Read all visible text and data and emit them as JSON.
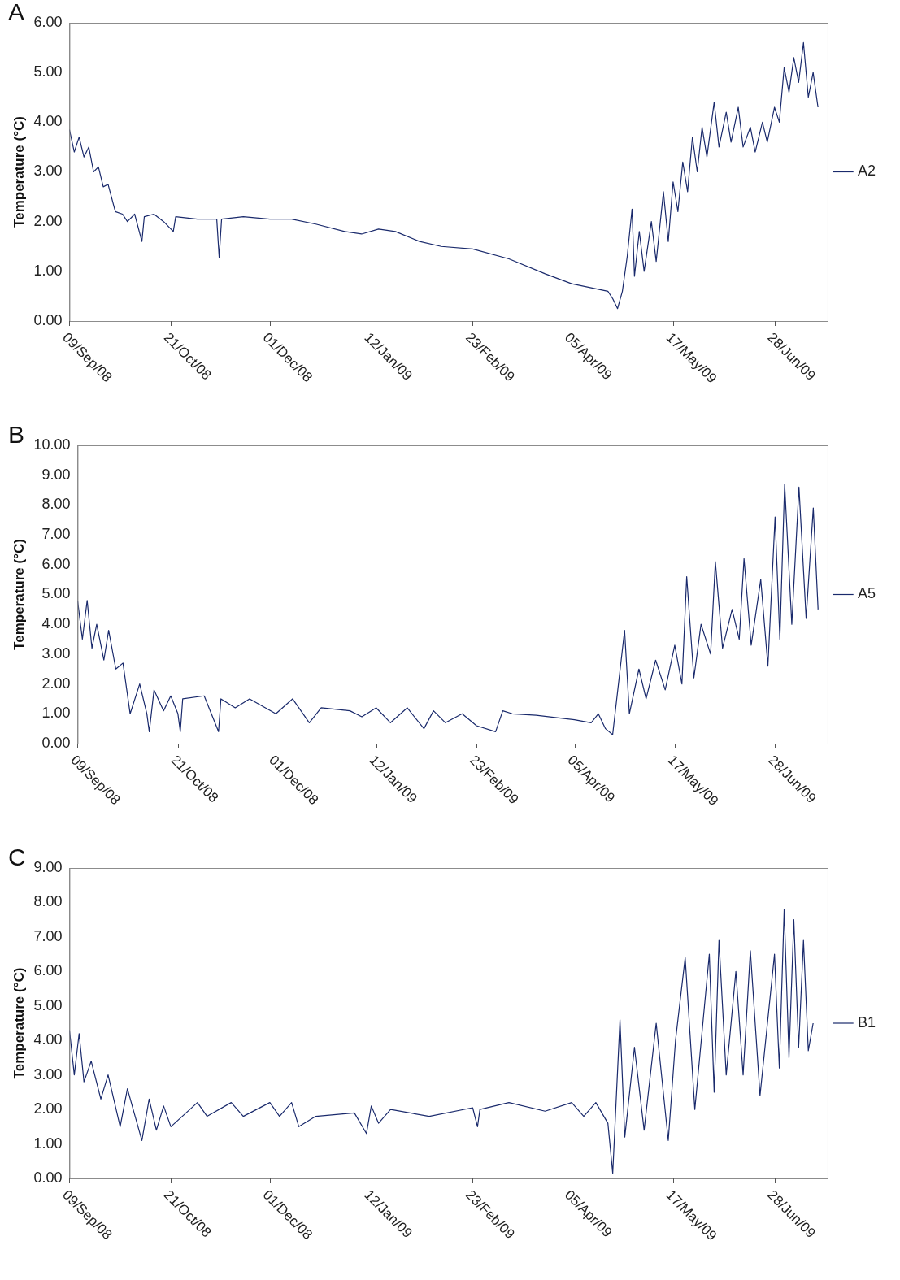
{
  "chart_data": [
    {
      "type": "line",
      "title": "A",
      "ylabel": "Temperature (°C)",
      "legend": "right",
      "grid": false,
      "marker": "none",
      "line_style": "solid",
      "xlim": [
        "2008-09-09",
        "2009-07-20"
      ],
      "xticks": [
        {
          "value": "2008-09-09",
          "label": "09/Sep/08"
        },
        {
          "value": "2008-10-21",
          "label": "21/Oct/08"
        },
        {
          "value": "2008-12-01",
          "label": "01/Dec/08"
        },
        {
          "value": "2009-01-12",
          "label": "12/Jan/09"
        },
        {
          "value": "2009-02-23",
          "label": "23/Feb/09"
        },
        {
          "value": "2009-04-05",
          "label": "05/Apr/09"
        },
        {
          "value": "2009-05-17",
          "label": "17/May/09"
        },
        {
          "value": "2009-06-28",
          "label": "28/Jun/09"
        }
      ],
      "ylim": [
        0,
        6
      ],
      "yticks": [
        {
          "value": 0,
          "label": "0.00"
        },
        {
          "value": 1,
          "label": "1.00"
        },
        {
          "value": 2,
          "label": "2.00"
        },
        {
          "value": 3,
          "label": "3.00"
        },
        {
          "value": 4,
          "label": "4.00"
        },
        {
          "value": 5,
          "label": "5.00"
        },
        {
          "value": 6,
          "label": "6.00"
        }
      ],
      "series": [
        {
          "name": "A2",
          "color": "#1a2a6c",
          "x": [
            "2008-09-09",
            "2008-09-11",
            "2008-09-13",
            "2008-09-15",
            "2008-09-17",
            "2008-09-19",
            "2008-09-21",
            "2008-09-23",
            "2008-09-25",
            "2008-09-28",
            "2008-10-01",
            "2008-10-03",
            "2008-10-06",
            "2008-10-09",
            "2008-10-10",
            "2008-10-14",
            "2008-10-18",
            "2008-10-22",
            "2008-10-23",
            "2008-11-01",
            "2008-11-09",
            "2008-11-10",
            "2008-11-11",
            "2008-11-20",
            "2008-12-01",
            "2008-12-10",
            "2008-12-20",
            "2009-01-01",
            "2009-01-08",
            "2009-01-15",
            "2009-01-22",
            "2009-02-01",
            "2009-02-10",
            "2009-02-23",
            "2009-03-10",
            "2009-03-25",
            "2009-04-05",
            "2009-04-20",
            "2009-04-22",
            "2009-04-24",
            "2009-04-26",
            "2009-04-28",
            "2009-04-30",
            "2009-05-01",
            "2009-05-03",
            "2009-05-05",
            "2009-05-08",
            "2009-05-10",
            "2009-05-13",
            "2009-05-15",
            "2009-05-17",
            "2009-05-19",
            "2009-05-21",
            "2009-05-23",
            "2009-05-25",
            "2009-05-27",
            "2009-05-29",
            "2009-05-31",
            "2009-06-03",
            "2009-06-05",
            "2009-06-08",
            "2009-06-10",
            "2009-06-13",
            "2009-06-15",
            "2009-06-18",
            "2009-06-20",
            "2009-06-23",
            "2009-06-25",
            "2009-06-28",
            "2009-06-30",
            "2009-07-02",
            "2009-07-04",
            "2009-07-06",
            "2009-07-08",
            "2009-07-10",
            "2009-07-12",
            "2009-07-14",
            "2009-07-16"
          ],
          "values": [
            3.85,
            3.4,
            3.7,
            3.3,
            3.5,
            3.0,
            3.1,
            2.7,
            2.75,
            2.2,
            2.15,
            2.0,
            2.15,
            1.6,
            2.1,
            2.15,
            2.0,
            1.8,
            2.1,
            2.05,
            2.05,
            1.28,
            2.05,
            2.1,
            2.05,
            2.05,
            1.95,
            1.8,
            1.75,
            1.85,
            1.8,
            1.6,
            1.5,
            1.45,
            1.25,
            0.95,
            0.75,
            0.6,
            0.45,
            0.25,
            0.6,
            1.3,
            2.25,
            0.9,
            1.8,
            1.0,
            2.0,
            1.2,
            2.6,
            1.6,
            2.8,
            2.2,
            3.2,
            2.6,
            3.7,
            3.0,
            3.9,
            3.3,
            4.4,
            3.5,
            4.2,
            3.6,
            4.3,
            3.5,
            3.9,
            3.4,
            4.0,
            3.6,
            4.3,
            4.0,
            5.1,
            4.6,
            5.3,
            4.8,
            5.6,
            4.5,
            5.0,
            4.3
          ]
        }
      ]
    },
    {
      "type": "line",
      "title": "B",
      "ylabel": "Temperature (°C)",
      "legend": "right",
      "grid": false,
      "marker": "none",
      "line_style": "solid",
      "xlim": [
        "2008-09-09",
        "2009-07-20"
      ],
      "xticks": [
        {
          "value": "2008-09-09",
          "label": "09/Sep/08"
        },
        {
          "value": "2008-10-21",
          "label": "21/Oct/08"
        },
        {
          "value": "2008-12-01",
          "label": "01/Dec/08"
        },
        {
          "value": "2009-01-12",
          "label": "12/Jan/09"
        },
        {
          "value": "2009-02-23",
          "label": "23/Feb/09"
        },
        {
          "value": "2009-04-05",
          "label": "05/Apr/09"
        },
        {
          "value": "2009-05-17",
          "label": "17/May/09"
        },
        {
          "value": "2009-06-28",
          "label": "28/Jun/09"
        }
      ],
      "ylim": [
        0,
        10
      ],
      "yticks": [
        {
          "value": 0,
          "label": "0.00"
        },
        {
          "value": 1,
          "label": "1.00"
        },
        {
          "value": 2,
          "label": "2.00"
        },
        {
          "value": 3,
          "label": "3.00"
        },
        {
          "value": 4,
          "label": "4.00"
        },
        {
          "value": 5,
          "label": "5.00"
        },
        {
          "value": 6,
          "label": "6.00"
        },
        {
          "value": 7,
          "label": "7.00"
        },
        {
          "value": 8,
          "label": "8.00"
        },
        {
          "value": 9,
          "label": "9.00"
        },
        {
          "value": 10,
          "label": "10.00"
        }
      ],
      "series": [
        {
          "name": "A5",
          "color": "#1a2a6c",
          "x": [
            "2008-09-09",
            "2008-09-11",
            "2008-09-13",
            "2008-09-15",
            "2008-09-17",
            "2008-09-20",
            "2008-09-22",
            "2008-09-25",
            "2008-09-28",
            "2008-10-01",
            "2008-10-05",
            "2008-10-08",
            "2008-10-09",
            "2008-10-11",
            "2008-10-15",
            "2008-10-18",
            "2008-10-21",
            "2008-10-22",
            "2008-10-23",
            "2008-11-01",
            "2008-11-07",
            "2008-11-08",
            "2008-11-14",
            "2008-11-20",
            "2008-12-01",
            "2008-12-08",
            "2008-12-15",
            "2008-12-20",
            "2009-01-01",
            "2009-01-06",
            "2009-01-12",
            "2009-01-18",
            "2009-01-25",
            "2009-02-01",
            "2009-02-05",
            "2009-02-10",
            "2009-02-17",
            "2009-02-23",
            "2009-03-03",
            "2009-03-06",
            "2009-03-10",
            "2009-03-20",
            "2009-04-05",
            "2009-04-12",
            "2009-04-15",
            "2009-04-18",
            "2009-04-21",
            "2009-04-26",
            "2009-04-28",
            "2009-05-02",
            "2009-05-05",
            "2009-05-09",
            "2009-05-13",
            "2009-05-17",
            "2009-05-20",
            "2009-05-22",
            "2009-05-25",
            "2009-05-28",
            "2009-06-01",
            "2009-06-03",
            "2009-06-06",
            "2009-06-10",
            "2009-06-13",
            "2009-06-15",
            "2009-06-18",
            "2009-06-22",
            "2009-06-25",
            "2009-06-28",
            "2009-06-30",
            "2009-07-02",
            "2009-07-05",
            "2009-07-08",
            "2009-07-11",
            "2009-07-14",
            "2009-07-16"
          ],
          "values": [
            4.8,
            3.5,
            4.8,
            3.2,
            4.0,
            2.8,
            3.8,
            2.5,
            2.7,
            1.0,
            2.0,
            1.0,
            0.4,
            1.8,
            1.1,
            1.6,
            1.0,
            0.4,
            1.5,
            1.6,
            0.4,
            1.5,
            1.2,
            1.5,
            1.0,
            1.5,
            0.7,
            1.2,
            1.1,
            0.9,
            1.2,
            0.7,
            1.2,
            0.5,
            1.1,
            0.7,
            1.0,
            0.6,
            0.4,
            1.1,
            1.0,
            0.95,
            0.8,
            0.7,
            1.0,
            0.5,
            0.3,
            3.8,
            1.0,
            2.5,
            1.5,
            2.8,
            1.8,
            3.3,
            2.0,
            5.6,
            2.2,
            4.0,
            3.0,
            6.1,
            3.2,
            4.5,
            3.5,
            6.2,
            3.3,
            5.5,
            2.6,
            7.6,
            3.5,
            8.7,
            4.0,
            8.6,
            4.2,
            7.9,
            4.5
          ]
        }
      ]
    },
    {
      "type": "line",
      "title": "C",
      "ylabel": "Temperature (°C)",
      "legend": "right",
      "grid": false,
      "marker": "none",
      "line_style": "solid",
      "xlim": [
        "2008-09-09",
        "2009-07-20"
      ],
      "xticks": [
        {
          "value": "2008-09-09",
          "label": "09/Sep/08"
        },
        {
          "value": "2008-10-21",
          "label": "21/Oct/08"
        },
        {
          "value": "2008-12-01",
          "label": "01/Dec/08"
        },
        {
          "value": "2009-01-12",
          "label": "12/Jan/09"
        },
        {
          "value": "2009-02-23",
          "label": "23/Feb/09"
        },
        {
          "value": "2009-04-05",
          "label": "05/Apr/09"
        },
        {
          "value": "2009-05-17",
          "label": "17/May/09"
        },
        {
          "value": "2009-06-28",
          "label": "28/Jun/09"
        }
      ],
      "ylim": [
        0,
        9
      ],
      "yticks": [
        {
          "value": 0,
          "label": "0.00"
        },
        {
          "value": 1,
          "label": "1.00"
        },
        {
          "value": 2,
          "label": "2.00"
        },
        {
          "value": 3,
          "label": "3.00"
        },
        {
          "value": 4,
          "label": "4.00"
        },
        {
          "value": 5,
          "label": "5.00"
        },
        {
          "value": 6,
          "label": "6.00"
        },
        {
          "value": 7,
          "label": "7.00"
        },
        {
          "value": 8,
          "label": "8.00"
        },
        {
          "value": 9,
          "label": "9.00"
        }
      ],
      "series": [
        {
          "name": "B1",
          "color": "#1a2a6c",
          "x": [
            "2008-09-09",
            "2008-09-11",
            "2008-09-13",
            "2008-09-15",
            "2008-09-18",
            "2008-09-22",
            "2008-09-25",
            "2008-09-30",
            "2008-10-03",
            "2008-10-09",
            "2008-10-12",
            "2008-10-15",
            "2008-10-18",
            "2008-10-21",
            "2008-11-01",
            "2008-11-05",
            "2008-11-15",
            "2008-11-20",
            "2008-12-01",
            "2008-12-05",
            "2008-12-10",
            "2008-12-13",
            "2008-12-20",
            "2009-01-05",
            "2009-01-10",
            "2009-01-12",
            "2009-01-15",
            "2009-01-20",
            "2009-02-05",
            "2009-02-23",
            "2009-02-25",
            "2009-02-26",
            "2009-03-10",
            "2009-03-25",
            "2009-04-05",
            "2009-04-10",
            "2009-04-15",
            "2009-04-20",
            "2009-04-22",
            "2009-04-25",
            "2009-04-27",
            "2009-05-01",
            "2009-05-05",
            "2009-05-10",
            "2009-05-15",
            "2009-05-18",
            "2009-05-22",
            "2009-05-26",
            "2009-06-01",
            "2009-06-03",
            "2009-06-05",
            "2009-06-08",
            "2009-06-12",
            "2009-06-15",
            "2009-06-18",
            "2009-06-22",
            "2009-06-28",
            "2009-06-30",
            "2009-07-02",
            "2009-07-04",
            "2009-07-06",
            "2009-07-08",
            "2009-07-10",
            "2009-07-12",
            "2009-07-14"
          ],
          "values": [
            4.3,
            3.0,
            4.2,
            2.8,
            3.4,
            2.3,
            3.0,
            1.5,
            2.6,
            1.1,
            2.3,
            1.4,
            2.1,
            1.5,
            2.2,
            1.8,
            2.2,
            1.8,
            2.2,
            1.8,
            2.2,
            1.5,
            1.8,
            1.9,
            1.3,
            2.1,
            1.6,
            2.0,
            1.8,
            2.05,
            1.5,
            2.0,
            2.2,
            1.95,
            2.2,
            1.8,
            2.2,
            1.6,
            0.15,
            4.6,
            1.2,
            3.8,
            1.4,
            4.5,
            1.1,
            4.0,
            6.4,
            2.0,
            6.5,
            2.5,
            6.9,
            3.0,
            6.0,
            3.0,
            6.6,
            2.4,
            6.5,
            3.2,
            7.8,
            3.5,
            7.5,
            3.8,
            6.9,
            3.7,
            4.5
          ]
        }
      ]
    }
  ]
}
